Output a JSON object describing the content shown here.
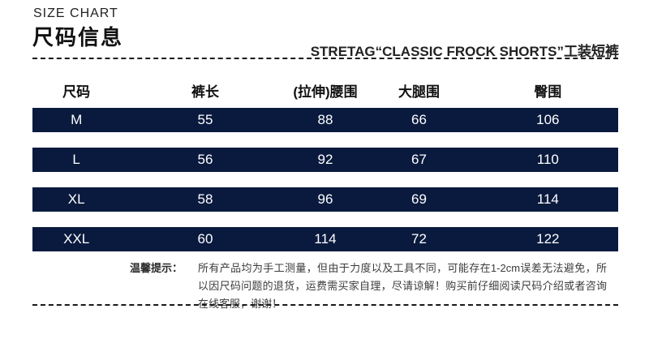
{
  "header": {
    "eyebrow": "SIZE CHART",
    "title": "尺码信息",
    "product": "STRETAG“CLASSIC FROCK SHORTS”工装短裤"
  },
  "table": {
    "columns": [
      "尺码",
      "裤长",
      "(拉伸)腰围",
      "大腿围",
      "臀围"
    ],
    "rows": [
      {
        "cells": [
          "M",
          "55",
          "88",
          "66",
          "106"
        ]
      },
      {
        "cells": [
          "L",
          "56",
          "92",
          "67",
          "110"
        ]
      },
      {
        "cells": [
          "XL",
          "58",
          "96",
          "69",
          "114"
        ]
      },
      {
        "cells": [
          "XXL",
          "60",
          "114",
          "72",
          "122"
        ]
      }
    ]
  },
  "tips": {
    "label": "温馨提示：",
    "text": "所有产品均为手工测量，但由于力度以及工具不同，可能存在1-2cm误差无法避免，所以因尺码问题的退货，运费需买家自理，尽请谅解！购买前仔细阅读尺码介绍或者咨询在线客服，谢谢！"
  },
  "colors": {
    "row_background": "#0a1a3e",
    "row_text": "#ffffff",
    "heading_text": "#111111",
    "divider": "#1a1a1a"
  },
  "chart_data": {
    "type": "table",
    "title": "尺码信息 (SIZE CHART) — STRETAG CLASSIC FROCK SHORTS 工装短裤",
    "columns": [
      "尺码",
      "裤长",
      "(拉伸)腰围",
      "大腿围",
      "臀围"
    ],
    "rows": [
      [
        "M",
        55,
        88,
        66,
        106
      ],
      [
        "L",
        56,
        92,
        67,
        110
      ],
      [
        "XL",
        58,
        96,
        69,
        114
      ],
      [
        "XXL",
        60,
        114,
        72,
        122
      ]
    ],
    "notes": "所有产品均为手工测量，可能存在1-2cm误差"
  }
}
